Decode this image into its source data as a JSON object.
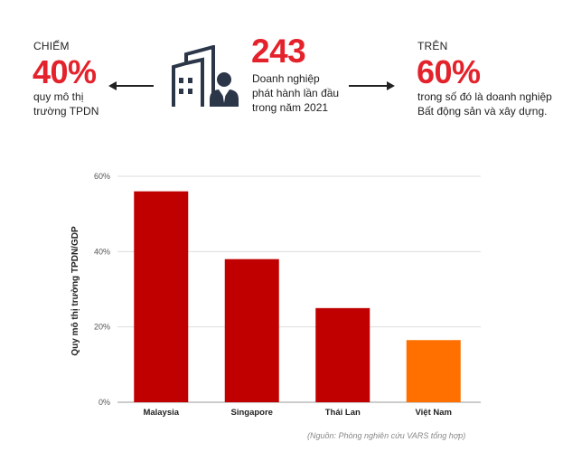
{
  "left_stat": {
    "label": "CHIẾM",
    "value": "40%",
    "desc_line1": "quy mô thị",
    "desc_line2": "trường TPDN"
  },
  "center_stat": {
    "value": "243",
    "desc_line1": "Doanh nghiệp",
    "desc_line2": "phát hành lần đầu",
    "desc_line3": "trong năm 2021"
  },
  "right_stat": {
    "label": "TRÊN",
    "value": "60%",
    "desc_line1": "trong số đó là doanh nghiệp",
    "desc_line2": "Bất động sản và xây dựng."
  },
  "icon": "building-person-icon",
  "colors": {
    "accent_red": "#e3222b",
    "bar_red": "#c00000",
    "bar_orange": "#ff7000",
    "icon_navy": "#2b3649"
  },
  "chart_data": {
    "type": "bar",
    "categories": [
      "Malaysia",
      "Singapore",
      "Thái Lan",
      "Việt Nam"
    ],
    "values": [
      56,
      38,
      25,
      16.5
    ],
    "bar_colors": [
      "#c00000",
      "#c00000",
      "#c00000",
      "#ff7000"
    ],
    "ylabel": "Quy mô thị trường TPDN/GDP",
    "ylim": [
      0,
      60
    ],
    "yticks": [
      0,
      20,
      40,
      60
    ],
    "ytick_labels": [
      "0%",
      "20%",
      "40%",
      "60%"
    ],
    "grid": true
  },
  "source_note": "(Nguồn: Phòng nghiên cứu VARS tổng hợp)"
}
